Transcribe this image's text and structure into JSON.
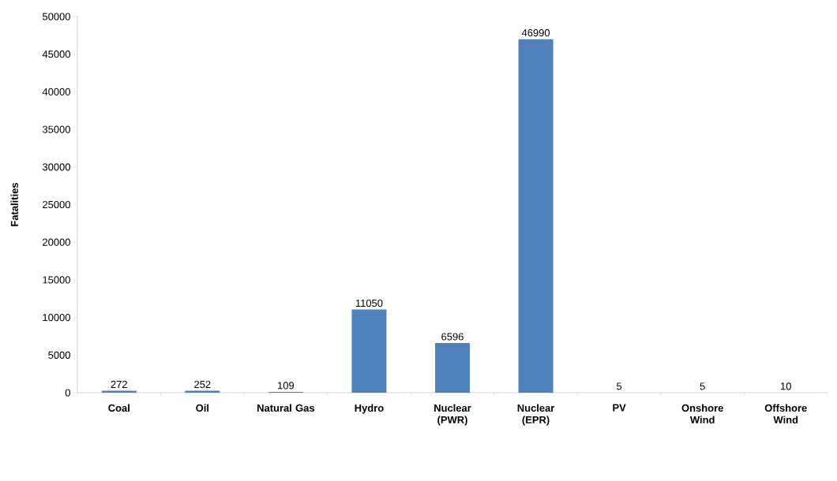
{
  "chart_data": {
    "type": "bar",
    "ylabel": "Fatalities",
    "categories": [
      "Coal",
      "Oil",
      "Natural Gas",
      "Hydro",
      "Nuclear (PWR)",
      "Nuclear (EPR)",
      "PV",
      "Onshore Wind",
      "Offshore Wind"
    ],
    "values": [
      272,
      252,
      109,
      11050,
      6596,
      46990,
      5,
      5,
      10
    ],
    "color": "#4f81bd",
    "ylim": [
      0,
      50000
    ],
    "yticks": [
      0,
      5000,
      10000,
      15000,
      20000,
      25000,
      30000,
      35000,
      40000,
      45000,
      50000
    ],
    "data_labels": true,
    "grid": false
  }
}
